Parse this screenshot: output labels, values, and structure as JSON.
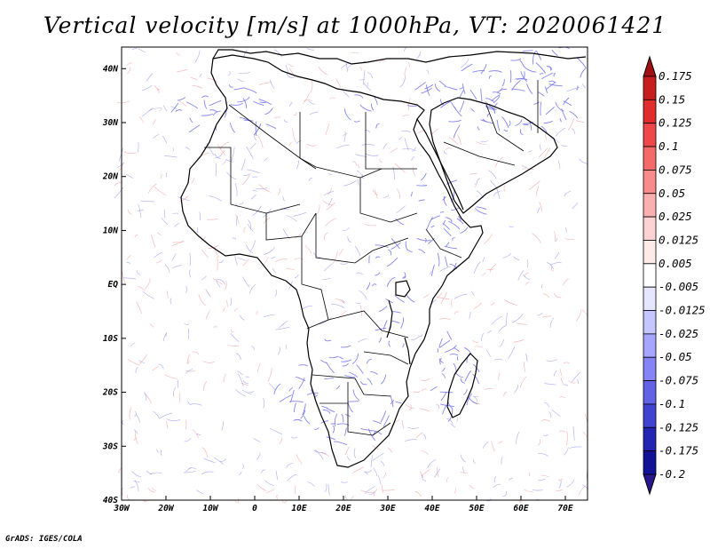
{
  "title": "Vertical velocity [m/s] at 1000hPa, VT: 2020061421",
  "footer": "GrADS: IGES/COLA",
  "map": {
    "lon_range": [
      -30,
      75
    ],
    "lat_range": [
      -40,
      44
    ],
    "x_ticks": [
      {
        "lon": -30,
        "label": "30W"
      },
      {
        "lon": -20,
        "label": "20W"
      },
      {
        "lon": -10,
        "label": "10W"
      },
      {
        "lon": 0,
        "label": "0"
      },
      {
        "lon": 10,
        "label": "10E"
      },
      {
        "lon": 20,
        "label": "20E"
      },
      {
        "lon": 30,
        "label": "30E"
      },
      {
        "lon": 40,
        "label": "40E"
      },
      {
        "lon": 50,
        "label": "50E"
      },
      {
        "lon": 60,
        "label": "60E"
      },
      {
        "lon": 70,
        "label": "70E"
      }
    ],
    "y_ticks": [
      {
        "lat": 40,
        "label": "40N"
      },
      {
        "lat": 30,
        "label": "30N"
      },
      {
        "lat": 20,
        "label": "20N"
      },
      {
        "lat": 10,
        "label": "10N"
      },
      {
        "lat": 0,
        "label": "EQ"
      },
      {
        "lat": -10,
        "label": "10S"
      },
      {
        "lat": -20,
        "label": "20S"
      },
      {
        "lat": -30,
        "label": "30S"
      },
      {
        "lat": -40,
        "label": "40S"
      }
    ]
  },
  "colorbar": {
    "labels": [
      "0.175",
      "0.15",
      "0.125",
      "0.1",
      "0.075",
      "0.05",
      "0.025",
      "0.0125",
      "0.005",
      "-0.005",
      "-0.0125",
      "-0.025",
      "-0.05",
      "-0.075",
      "-0.1",
      "-0.125",
      "-0.175",
      "-0.2"
    ],
    "colors": [
      "#a01010",
      "#c81e1e",
      "#e02c2c",
      "#ee4848",
      "#f46a6a",
      "#f88c8c",
      "#fbb0b0",
      "#fdd2d2",
      "#ffeaea",
      "#ffffff",
      "#e6e6ff",
      "#c6c6ff",
      "#a6a6ff",
      "#8484f6",
      "#6262e6",
      "#4242d2",
      "#2424b4",
      "#121296",
      "#28168c"
    ]
  },
  "colors": {
    "positive": "#f07a7a",
    "negative": "#7070f0",
    "coast": "#000000"
  }
}
